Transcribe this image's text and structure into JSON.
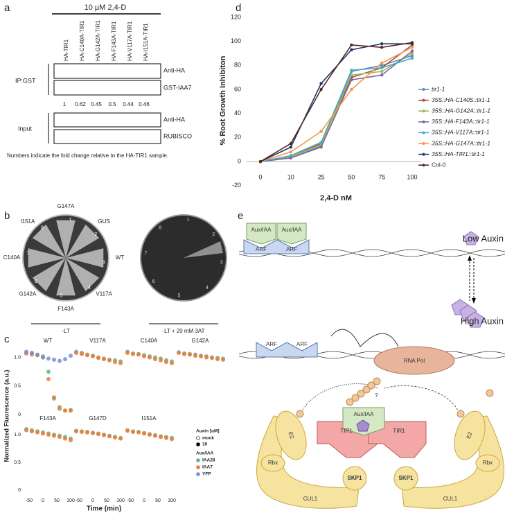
{
  "panel_a": {
    "label": "a",
    "treatment": "10 µM 2,4-D",
    "lanes": [
      "HA-TIR1",
      "HA-C140A-TIR1",
      "HA-G142A-TIR1",
      "HA-F143A-TIR1",
      "HA-V117A-TIR1",
      "HA-I151A-TIR1"
    ],
    "ip_label": "IP:GST",
    "ip_blots": [
      "Anti-HA",
      "GST-IAA7"
    ],
    "fold_change": [
      1,
      0.62,
      0.45,
      0.5,
      0.44,
      0.46
    ],
    "input_label": "Input",
    "input_blots": [
      "Anti-HA",
      "RUBISCO"
    ],
    "caption": "Numbers indicate the fold change relative to the HA-TIR1 sample."
  },
  "panel_b": {
    "label": "b",
    "plate1_strains": [
      "G147A",
      "GUS",
      "WT",
      "V117A",
      "F143A",
      "G142A",
      "C140A",
      "I151A"
    ],
    "plate1_numbers": [
      1,
      2,
      3,
      4,
      5,
      6,
      7,
      8
    ],
    "plate1_caption": "-LT",
    "plate2_numbers": [
      1,
      2,
      3,
      4,
      5,
      6,
      7,
      8
    ],
    "plate2_caption": "-LT + 20 mM 3AT"
  },
  "chart_data": [
    {
      "type": "scatter",
      "label": "c",
      "ylabel": "Normalized Fluorescence (a.u.)",
      "xlabel": "Time (min)",
      "x": [
        -60,
        -40,
        -20,
        0,
        20,
        40,
        60,
        80,
        100
      ],
      "xlim": [
        -75,
        110
      ],
      "xticks": [
        -50,
        0,
        50,
        100
      ],
      "ylim": [
        0,
        1.25
      ],
      "yticks": [
        0,
        0.5,
        {
          "value": 1,
          "label": "1.0"
        }
      ],
      "legend": {
        "auxin_title": "Auxin [uM]",
        "auxin_levels": [
          "mock",
          "10"
        ],
        "auxiaa_title": "Aux/IAA"
      },
      "panels": [
        {
          "title": "WT",
          "series": [
            {
              "name": "IAA28",
              "color": "#5fb58a",
              "values": [
                1.08,
                1.07,
                1.05,
                1.02,
                0.75,
                0.28,
                0.1,
                0.07,
                0.08
              ]
            },
            {
              "name": "IAA7",
              "color": "#ee7a3a",
              "values": [
                1.07,
                1.05,
                1.04,
                1.0,
                0.62,
                0.3,
                0.13,
                0.07,
                0.07
              ]
            },
            {
              "name": "YFP",
              "color": "#7b8fd0",
              "values": [
                1.1,
                1.08,
                1.04,
                1.0,
                0.98,
                0.96,
                0.94,
                0.97,
                1.03
              ]
            }
          ]
        },
        {
          "title": "V117A",
          "series": [
            {
              "color": "#5fb58a",
              "values": [
                1.1,
                1.08,
                1.05,
                1.03,
                1.0,
                0.98,
                0.96,
                0.95,
                0.93
              ]
            },
            {
              "color": "#ee7a3a",
              "values": [
                1.08,
                1.06,
                1.04,
                1.02,
                0.99,
                0.97,
                0.95,
                0.92,
                0.9
              ]
            }
          ]
        },
        {
          "title": "C140A",
          "series": [
            {
              "color": "#5fb58a",
              "values": [
                1.1,
                1.07,
                1.06,
                1.04,
                1.02,
                1.0,
                0.98,
                0.95,
                0.93
              ]
            },
            {
              "color": "#ee7a3a",
              "values": [
                1.08,
                1.06,
                1.05,
                1.02,
                1.0,
                0.97,
                0.95,
                0.92,
                0.9
              ]
            }
          ]
        },
        {
          "title": "G142A",
          "series": [
            {
              "color": "#5fb58a",
              "values": [
                1.09,
                1.07,
                1.06,
                1.05,
                1.03,
                1.02,
                1.0,
                0.99,
                0.98
              ]
            },
            {
              "color": "#ee7a3a",
              "values": [
                1.08,
                1.06,
                1.05,
                1.03,
                1.02,
                1.0,
                0.99,
                0.97,
                0.96
              ]
            }
          ]
        },
        {
          "title": "F143A",
          "series": [
            {
              "color": "#5fb58a",
              "values": [
                1.1,
                1.08,
                1.06,
                1.04,
                1.02,
                1.0,
                0.98,
                0.96,
                0.93
              ]
            },
            {
              "color": "#ee7a3a",
              "values": [
                1.08,
                1.06,
                1.04,
                1.02,
                1.0,
                0.98,
                0.96,
                0.93,
                0.9
              ]
            }
          ]
        },
        {
          "title": "G147D",
          "series": [
            {
              "color": "#5fb58a",
              "values": [
                1.07,
                1.06,
                1.05,
                1.03,
                1.02,
                1.0,
                0.98,
                0.96,
                0.94
              ]
            },
            {
              "color": "#ee7a3a",
              "values": [
                1.06,
                1.05,
                1.04,
                1.03,
                1.01,
                0.99,
                0.97,
                0.95,
                0.93
              ]
            }
          ]
        },
        {
          "title": "I151A",
          "series": [
            {
              "color": "#5fb58a",
              "values": [
                1.08,
                1.06,
                1.05,
                1.03,
                1.01,
                0.99,
                0.97,
                0.96,
                0.94
              ]
            },
            {
              "color": "#ee7a3a",
              "values": [
                1.07,
                1.05,
                1.04,
                1.02,
                1.0,
                0.98,
                0.96,
                0.94,
                0.92
              ]
            }
          ]
        }
      ]
    },
    {
      "type": "line",
      "label": "d",
      "ylabel": "% Root Growth Inhibiton",
      "xlabel": "2,4-D nM",
      "categories": [
        "0",
        "10",
        "25",
        "50",
        "75",
        "100"
      ],
      "ylim": [
        -20,
        120
      ],
      "yticks": [
        -20,
        0,
        20,
        40,
        60,
        80,
        100,
        120
      ],
      "legend": "right",
      "series": [
        {
          "name": "tir1-1",
          "italic": true,
          "color": "#5b8db8",
          "values": [
            0,
            3,
            13,
            75,
            80,
            88
          ]
        },
        {
          "name": "35S::HA-C140S::tir1-1",
          "italic": true,
          "color": "#b24a3a",
          "values": [
            0,
            4,
            15,
            70,
            78,
            97
          ]
        },
        {
          "name": "35S::HA-G142A::tir1-1",
          "italic": true,
          "color": "#9bbb59",
          "values": [
            0,
            4,
            14,
            72,
            75,
            90
          ]
        },
        {
          "name": "35S::HA-F143A::tir1-1",
          "italic": true,
          "color": "#8064a2",
          "values": [
            0,
            3,
            12,
            68,
            72,
            92
          ]
        },
        {
          "name": "35S::HA-V117A::tir1-1",
          "italic": true,
          "color": "#4bacc6",
          "values": [
            0,
            5,
            16,
            76,
            78,
            86
          ]
        },
        {
          "name": "35S::HA-G147A::tir1-1",
          "italic": true,
          "color": "#f79646",
          "values": [
            0,
            8,
            25,
            60,
            82,
            95
          ]
        },
        {
          "name": "35S::HA-TIR1::tir1-1",
          "italic": true,
          "color": "#1f3864",
          "values": [
            0,
            12,
            65,
            93,
            98,
            98
          ]
        },
        {
          "name": "Col-0",
          "italic": false,
          "color": "#5a2a2a",
          "values": [
            0,
            15,
            60,
            97,
            95,
            99
          ]
        }
      ]
    }
  ],
  "panel_e": {
    "label": "e",
    "low": {
      "auxiaa": [
        "Aux/IAA",
        "Aux/IAA"
      ],
      "arf": [
        "ARF",
        "ARF"
      ],
      "text": "Low Auxin"
    },
    "high_text": "High Auxin",
    "active": {
      "arf": [
        "ARF",
        "ARF"
      ],
      "rnapol": "RNA Pol"
    },
    "scf": {
      "question": "?",
      "auxiaa": "Aux/IAA",
      "left": {
        "e2": "E2",
        "rbx": "Rbx",
        "cul1": "CUL1",
        "skp1": "SKP1",
        "tir1": "TIR1"
      },
      "right": {
        "e2": "E2",
        "rbx": "Rbx",
        "cul1": "CUL1",
        "skp1": "SKP1",
        "tir1": "TIR1"
      }
    }
  }
}
